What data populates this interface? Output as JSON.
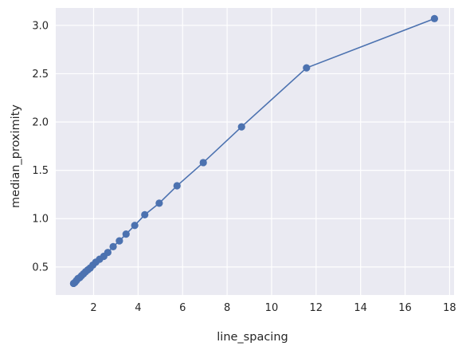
{
  "chart_data": {
    "type": "line",
    "xlabel": "line_spacing",
    "ylabel": "median_proximity",
    "xlim": [
      0.3,
      18.2
    ],
    "ylim": [
      0.21,
      3.18
    ],
    "xticks": [
      2,
      4,
      6,
      8,
      10,
      12,
      14,
      16,
      18
    ],
    "yticks": [
      0.5,
      1.0,
      1.5,
      2.0,
      2.5,
      3.0
    ],
    "xtick_labels": [
      "2",
      "4",
      "6",
      "8",
      "10",
      "12",
      "14",
      "16",
      "18"
    ],
    "ytick_labels": [
      "0.5",
      "1.0",
      "1.5",
      "2.0",
      "2.5",
      "3.0"
    ],
    "grid": true,
    "style": {
      "background": "#EAEAF2",
      "grid_color": "#FFFFFF",
      "line_color": "#4C72B0",
      "marker": "circle"
    },
    "series": [
      {
        "x": [
          1.1,
          1.16,
          1.23,
          1.3,
          1.38,
          1.46,
          1.55,
          1.64,
          1.74,
          1.85,
          1.97,
          2.1,
          2.27,
          2.46,
          2.64,
          2.88,
          3.16,
          3.46,
          3.85,
          4.3,
          4.95,
          5.75,
          6.93,
          8.65,
          11.57,
          17.32
        ],
        "y": [
          0.33,
          0.34,
          0.36,
          0.38,
          0.39,
          0.41,
          0.43,
          0.45,
          0.47,
          0.49,
          0.52,
          0.55,
          0.58,
          0.61,
          0.65,
          0.71,
          0.77,
          0.84,
          0.93,
          1.04,
          1.16,
          1.34,
          1.58,
          1.95,
          2.56,
          3.07
        ]
      }
    ]
  }
}
